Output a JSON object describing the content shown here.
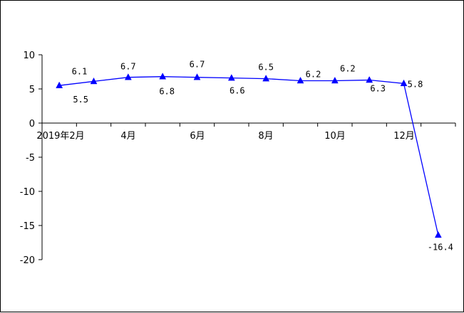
{
  "chart_data": {
    "type": "line",
    "title": "",
    "xlabel": "",
    "ylabel": "",
    "ylim": [
      -20,
      10
    ],
    "yticks": [
      "10",
      "5",
      "0",
      "-5",
      "-10",
      "-15",
      "-20"
    ],
    "xtick_labels": [
      "2019年2月",
      "4月",
      "6月",
      "8月",
      "10月",
      "12月"
    ],
    "grid": false,
    "legend": "none",
    "series": [
      {
        "values": [
          5.5,
          6.1,
          6.7,
          6.8,
          6.7,
          6.6,
          6.5,
          6.2,
          6.2,
          6.3,
          5.8,
          -16.4
        ],
        "labels": [
          "5.5",
          "6.1",
          "6.7",
          "6.8",
          "6.7",
          "6.6",
          "6.5",
          "6.2",
          "6.2",
          "6.3",
          "5.8",
          "-16.4"
        ],
        "color": "#0000ff",
        "marker": "triangle"
      }
    ]
  }
}
